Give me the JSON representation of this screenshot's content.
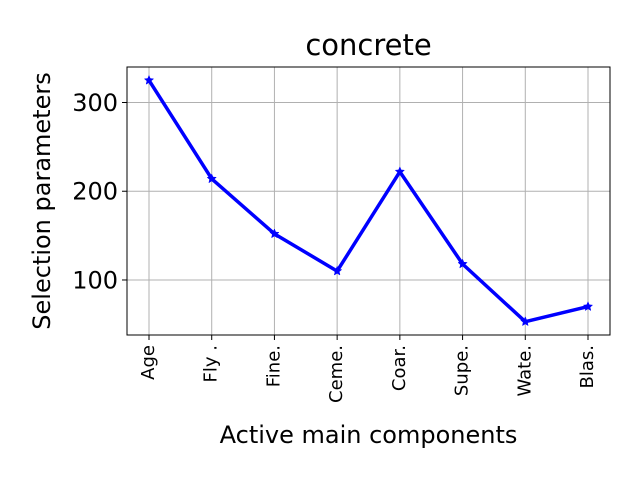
{
  "chart_data": {
    "type": "line",
    "title": "concrete",
    "xlabel": "Active main components",
    "ylabel": "Selection parameters",
    "categories": [
      "Age",
      "Fly .",
      "Fine.",
      "Ceme.",
      "Coar.",
      "Supe.",
      "Wate.",
      "Blas."
    ],
    "series": [
      {
        "values": [
          325,
          214,
          152,
          110,
          222,
          118,
          53,
          70
        ],
        "color": "#0000ff",
        "marker": "star"
      }
    ],
    "ylim": [
      38,
      340
    ],
    "yticks": [
      100,
      200,
      300
    ],
    "grid": true
  }
}
